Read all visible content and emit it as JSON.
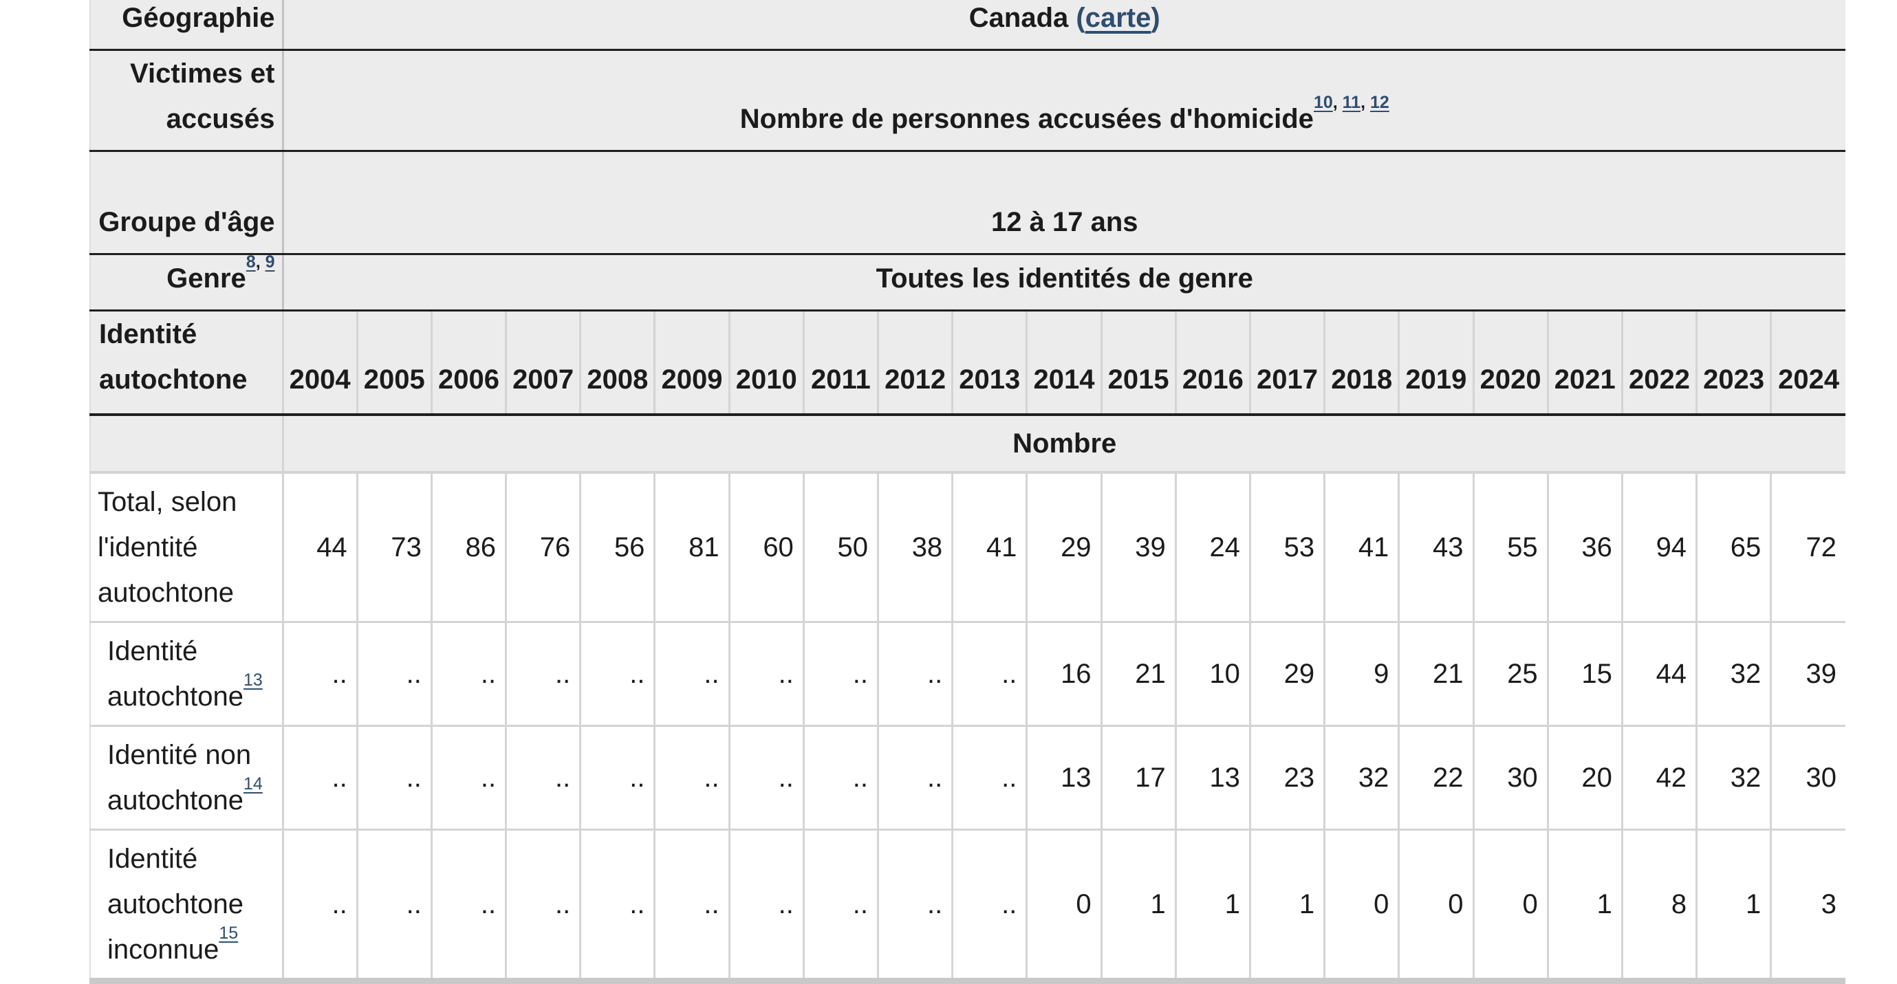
{
  "colors": {
    "link_navy": "#2f4d6f",
    "header_bg": "#ececec",
    "border_dark": "#1f1f1f",
    "border_light": "#d4d4d4",
    "text": "#1b1b1b"
  },
  "table": {
    "meta_rows": [
      {
        "label": "Géographie",
        "value": "Canada",
        "value_link_open": "(",
        "value_link": "carte",
        "value_link_close": ")"
      },
      {
        "label": "Victimes et accusés",
        "value": "Nombre de personnes accusées d'homicide",
        "value_sups": [
          "10",
          "11",
          "12"
        ]
      },
      {
        "label": "Groupe d'âge",
        "value": "12 à 17 ans"
      },
      {
        "label": "Genre",
        "label_sups": [
          "8",
          "9"
        ],
        "value": "Toutes les identités de genre"
      }
    ],
    "column_header": {
      "label": "Identité autochtone",
      "years": [
        "2004",
        "2005",
        "2006",
        "2007",
        "2008",
        "2009",
        "2010",
        "2011",
        "2012",
        "2013",
        "2014",
        "2015",
        "2016",
        "2017",
        "2018",
        "2019",
        "2020",
        "2021",
        "2022",
        "2023",
        "2024"
      ]
    },
    "unit_label": "Nombre",
    "missing_symbol": "..",
    "data_rows": [
      {
        "label": "Total, selon l'identité autochtone",
        "sup": null,
        "indent": false,
        "values": [
          "44",
          "73",
          "86",
          "76",
          "56",
          "81",
          "60",
          "50",
          "38",
          "41",
          "29",
          "39",
          "24",
          "53",
          "41",
          "43",
          "55",
          "36",
          "94",
          "65",
          "72"
        ]
      },
      {
        "label": "Identité autochtone",
        "sup": "13",
        "indent": true,
        "values": [
          "..",
          "..",
          "..",
          "..",
          "..",
          "..",
          "..",
          "..",
          "..",
          "..",
          "16",
          "21",
          "10",
          "29",
          "9",
          "21",
          "25",
          "15",
          "44",
          "32",
          "39"
        ]
      },
      {
        "label": "Identité non autochtone",
        "sup": "14",
        "indent": true,
        "values": [
          "..",
          "..",
          "..",
          "..",
          "..",
          "..",
          "..",
          "..",
          "..",
          "..",
          "13",
          "17",
          "13",
          "23",
          "32",
          "22",
          "30",
          "20",
          "42",
          "32",
          "30"
        ]
      },
      {
        "label": "Identité autochtone inconnue",
        "sup": "15",
        "indent": true,
        "values": [
          "..",
          "..",
          "..",
          "..",
          "..",
          "..",
          "..",
          "..",
          "..",
          "..",
          "0",
          "1",
          "1",
          "1",
          "0",
          "0",
          "0",
          "1",
          "8",
          "1",
          "3"
        ]
      }
    ]
  }
}
